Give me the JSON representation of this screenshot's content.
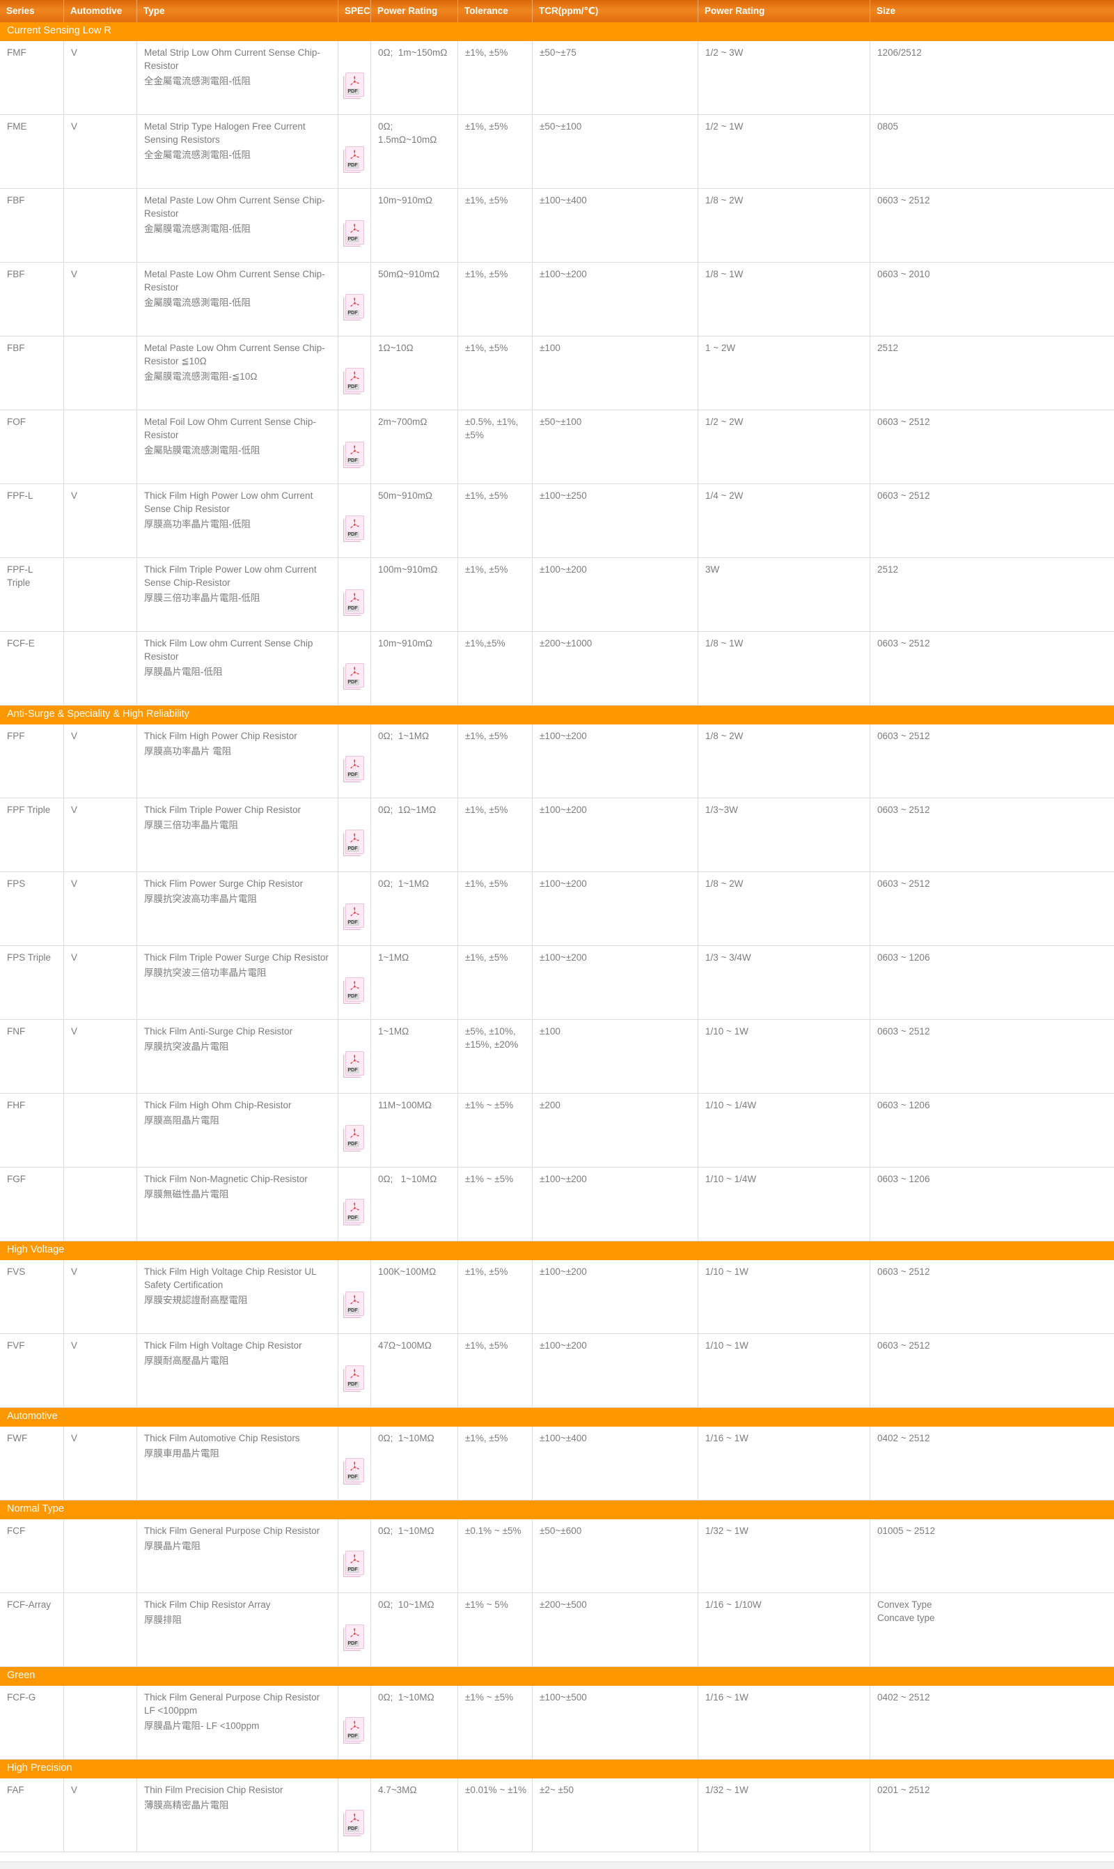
{
  "colors": {
    "header_orange_top": "#d96708",
    "header_orange_mid": "#ef861f",
    "header_orange_bottom": "#e26d0c",
    "section_orange": "#ff9800",
    "body_text": "#7c7c7c",
    "border": "#dcdcdc",
    "pdf_red": "#e23a3f",
    "pdf_pink": "#fdeaf5"
  },
  "pdf": {
    "label": "PDF"
  },
  "table": {
    "columns": [
      {
        "label": "Series"
      },
      {
        "label": "Automotive"
      },
      {
        "label": "Type"
      },
      {
        "label": "SPEC"
      },
      {
        "label": "Power Rating"
      },
      {
        "label": "Tolerance"
      },
      {
        "label": "TCR(ppm/℃)"
      },
      {
        "label": "Power Rating"
      },
      {
        "label": "Size"
      }
    ],
    "sections": [
      {
        "title": "Current Sensing Low R",
        "rows": [
          {
            "series": "FMF",
            "automotive": "V",
            "type_en": "Metal Strip Low Ohm Current Sense Chip-Resistor",
            "type_zh": "全金屬電流感測電阻-低阻",
            "power_rating": "0Ω;  1m~150mΩ",
            "tolerance": "±1%, ±5%",
            "tcr": "±50~±75",
            "power_rating2": "1/2 ~ 3W",
            "size": "1206/2512"
          },
          {
            "series": "FME",
            "automotive": "V",
            "type_en": "Metal Strip Type Halogen Free Current Sensing Resistors",
            "type_zh": "全金屬電流感測電阻-低阻",
            "power_rating": "0Ω;  1.5mΩ~10mΩ",
            "tolerance": "±1%, ±5%",
            "tcr": "±50~±100",
            "power_rating2": "1/2 ~ 1W",
            "size": "0805"
          },
          {
            "series": "FBF",
            "automotive": "",
            "type_en": "Metal Paste Low Ohm Current Sense Chip-Resistor",
            "type_zh": "金屬膜電流感測電阻-低阻",
            "power_rating": "10m~910mΩ",
            "tolerance": "±1%, ±5%",
            "tcr": "±100~±400",
            "power_rating2": "1/8 ~ 2W",
            "size": "0603 ~ 2512"
          },
          {
            "series": "FBF",
            "automotive": "V",
            "type_en": "Metal Paste Low Ohm Current Sense Chip-Resistor",
            "type_zh": "金屬膜電流感測電阻-低阻",
            "power_rating": "50mΩ~910mΩ",
            "tolerance": "±1%, ±5%",
            "tcr": "±100~±200",
            "power_rating2": "1/8 ~ 1W",
            "size": "0603 ~ 2010"
          },
          {
            "series": "FBF",
            "automotive": "",
            "type_en": "Metal Paste Low Ohm Current Sense Chip-Resistor ≦10Ω",
            "type_zh": "金屬膜電流感測電阻-≦10Ω",
            "power_rating": "1Ω~10Ω",
            "tolerance": "±1%, ±5%",
            "tcr": "±100",
            "power_rating2": "1 ~ 2W",
            "size": "2512"
          },
          {
            "series": "FOF",
            "automotive": "",
            "type_en": "Metal Foil Low Ohm Current Sense Chip-Resistor",
            "type_zh": "金屬貼膜電流感測電阻-低阻",
            "power_rating": "2m~700mΩ",
            "tolerance": "±0.5%, ±1%,\n±5%",
            "tcr": "±50~±100",
            "power_rating2": "1/2 ~ 2W",
            "size": "0603 ~ 2512"
          },
          {
            "series": "FPF-L",
            "automotive": "V",
            "type_en": "Thick Film High Power Low ohm Current Sense Chip Resistor",
            "type_zh": "厚膜高功率晶片電阻-低阻",
            "power_rating": "50m~910mΩ",
            "tolerance": "±1%, ±5%",
            "tcr": "±100~±250",
            "power_rating2": "1/4 ~ 2W",
            "size": "0603 ~ 2512"
          },
          {
            "series": "FPF-L Triple",
            "automotive": "",
            "type_en": "Thick Film Triple Power Low ohm Current Sense Chip-Resistor",
            "type_zh": "厚膜三倍功率晶片電阻-低阻",
            "power_rating": "100m~910mΩ",
            "tolerance": "±1%, ±5%",
            "tcr": "±100~±200",
            "power_rating2": "3W",
            "size": "2512"
          },
          {
            "series": "FCF-E",
            "automotive": "",
            "type_en": "Thick Film Low ohm Current Sense Chip Resistor",
            "type_zh": "厚膜晶片電阻-低阻",
            "power_rating": "10m~910mΩ",
            "tolerance": "±1%,±5%",
            "tcr": "±200~±1000",
            "power_rating2": "1/8 ~ 1W",
            "size": "0603 ~ 2512"
          }
        ]
      },
      {
        "title": "Anti-Surge & Speciality & High Reliability",
        "rows": [
          {
            "series": "FPF",
            "automotive": "V",
            "type_en": "Thick Film High Power Chip Resistor",
            "type_zh": "厚膜高功率晶片 電阻",
            "power_rating": "0Ω;  1~1MΩ",
            "tolerance": "±1%, ±5%",
            "tcr": "±100~±200",
            "power_rating2": "1/8 ~ 2W",
            "size": "0603 ~ 2512"
          },
          {
            "series": "FPF Triple",
            "automotive": "V",
            "type_en": "Thick Film Triple Power Chip Resistor",
            "type_zh": "厚膜三倍功率晶片電阻",
            "power_rating": "0Ω;  1Ω~1MΩ",
            "tolerance": "±1%, ±5%",
            "tcr": "±100~±200",
            "power_rating2": "1/3~3W",
            "size": "0603 ~ 2512"
          },
          {
            "series": "FPS",
            "automotive": "V",
            "type_en": "Thick Flim Power Surge Chip Resistor",
            "type_zh": "厚膜抗突波高功率晶片電阻",
            "power_rating": "0Ω;  1~1MΩ",
            "tolerance": "±1%, ±5%",
            "tcr": "±100~±200",
            "power_rating2": "1/8 ~ 2W",
            "size": "0603 ~ 2512"
          },
          {
            "series": "FPS Triple",
            "automotive": "V",
            "type_en": "Thick Film Triple Power Surge Chip Resistor",
            "type_zh": "厚膜抗突波三倍功率晶片電阻",
            "power_rating": "1~1MΩ",
            "tolerance": "±1%, ±5%",
            "tcr": "±100~±200",
            "power_rating2": "1/3 ~ 3/4W",
            "size": "0603 ~ 1206"
          },
          {
            "series": "FNF",
            "automotive": "V",
            "type_en": "Thick Film Anti-Surge Chip Resistor",
            "type_zh": "厚膜抗突波晶片電阻",
            "power_rating": "1~1MΩ",
            "tolerance": "±5%, ±10%,\n±15%, ±20%",
            "tcr": "±100",
            "power_rating2": "1/10 ~ 1W",
            "size": "0603 ~ 2512"
          },
          {
            "series": "FHF",
            "automotive": "",
            "type_en": "Thick Film High Ohm Chip-Resistor",
            "type_zh": "厚膜高阻晶片電阻",
            "power_rating": "11M~100MΩ",
            "tolerance": "±1% ~ ±5%",
            "tcr": "±200",
            "power_rating2": "1/10 ~ 1/4W",
            "size": "0603 ~ 1206"
          },
          {
            "series": "FGF",
            "automotive": "",
            "type_en": "Thick Film Non-Magnetic Chip-Resistor",
            "type_zh": "厚膜無磁性晶片電阻",
            "power_rating": "0Ω;   1~10MΩ",
            "tolerance": "±1% ~ ±5%",
            "tcr": "±100~±200",
            "power_rating2": "1/10 ~ 1/4W",
            "size": "0603 ~ 1206"
          }
        ]
      },
      {
        "title": "High Voltage",
        "rows": [
          {
            "series": "FVS",
            "automotive": "V",
            "type_en": "Thick Film High Voltage Chip Resistor UL Safety Certification",
            "type_zh": "厚膜安規認證耐高壓電阻",
            "power_rating": "100K~100MΩ",
            "tolerance": "±1%, ±5%",
            "tcr": "±100~±200",
            "power_rating2": "1/10 ~ 1W",
            "size": "0603 ~ 2512"
          },
          {
            "series": "FVF",
            "automotive": "V",
            "type_en": "Thick Film High Voltage Chip Resistor",
            "type_zh": "厚膜耐高壓晶片電阻",
            "power_rating": "47Ω~100MΩ",
            "tolerance": "±1%, ±5%",
            "tcr": "±100~±200",
            "power_rating2": "1/10 ~ 1W",
            "size": "0603 ~ 2512"
          }
        ]
      },
      {
        "title": "Automotive",
        "rows": [
          {
            "series": "FWF",
            "automotive": "V",
            "type_en": "Thick Film Automotive Chip Resistors",
            "type_zh": "厚膜車用晶片電阻",
            "power_rating": "0Ω;  1~10MΩ",
            "tolerance": "±1%, ±5%",
            "tcr": "±100~±400",
            "power_rating2": "1/16 ~ 1W",
            "size": "0402 ~ 2512"
          }
        ]
      },
      {
        "title": "Normal Type",
        "rows": [
          {
            "series": "FCF",
            "automotive": "",
            "type_en": "Thick Film General Purpose Chip Resistor",
            "type_zh": "厚膜晶片電阻",
            "power_rating": "0Ω;  1~10MΩ",
            "tolerance": "±0.1% ~ ±5%",
            "tcr": "±50~±600",
            "power_rating2": "1/32 ~ 1W",
            "size": "01005 ~ 2512"
          },
          {
            "series": "FCF-Array",
            "automotive": "",
            "type_en": "Thick Film Chip Resistor Array",
            "type_zh": "厚膜排阻",
            "power_rating": "0Ω;  10~1MΩ",
            "tolerance": "±1% ~ 5%",
            "tcr": "±200~±500",
            "power_rating2": "1/16 ~ 1/10W",
            "size": "Convex Type\nConcave type"
          }
        ]
      },
      {
        "title": "Green",
        "rows": [
          {
            "series": "FCF-G",
            "automotive": "",
            "type_en": "Thick Film General Purpose Chip Resistor LF <100ppm",
            "type_zh": "厚膜晶片電阻- LF <100ppm",
            "power_rating": "0Ω;  1~10MΩ",
            "tolerance": "±1% ~ ±5%",
            "tcr": "±100~±500",
            "power_rating2": "1/16 ~ 1W",
            "size": "0402 ~ 2512"
          }
        ]
      },
      {
        "title": "High Precision",
        "rows": [
          {
            "series": "FAF",
            "automotive": "V",
            "type_en": "Thin Film Precision Chip Resistor",
            "type_zh": "薄膜高精密晶片電阻",
            "power_rating": "4.7~3MΩ",
            "tolerance": "±0.01% ~ ±1%",
            "tcr": "±2~ ±50",
            "power_rating2": "1/32 ~ 1W",
            "size": "0201 ~ 2512"
          }
        ]
      }
    ]
  }
}
